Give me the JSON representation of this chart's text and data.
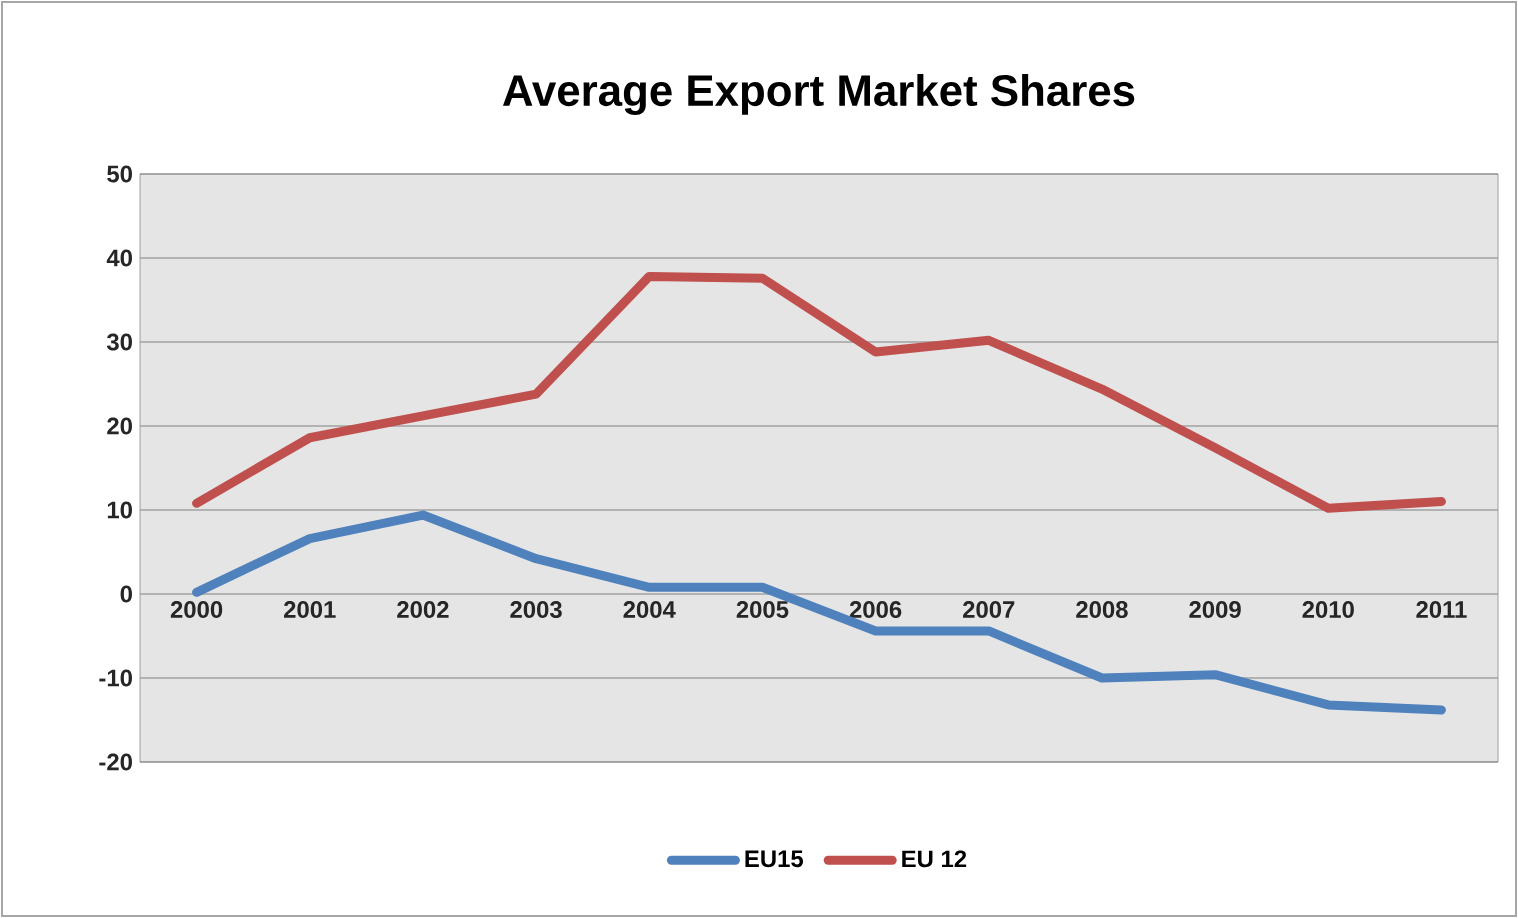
{
  "chart_data": {
    "type": "line",
    "title": "Average Export Market Shares",
    "categories": [
      "2000",
      "2001",
      "2002",
      "2003",
      "2004",
      "2005",
      "2006",
      "2007",
      "2008",
      "2009",
      "2010",
      "2011"
    ],
    "series": [
      {
        "name": "EU15",
        "color": "#4f81bd",
        "values": [
          0.2,
          6.6,
          9.4,
          4.2,
          0.8,
          0.8,
          -4.4,
          -4.4,
          -10,
          -9.6,
          -13.2,
          -13.8
        ]
      },
      {
        "name": "EU 12",
        "color": "#c0504d",
        "values": [
          10.8,
          18.6,
          21.2,
          23.8,
          37.8,
          37.6,
          28.8,
          30.2,
          24.4,
          17.4,
          10.2,
          11
        ]
      }
    ],
    "ylim": [
      -20,
      50
    ],
    "yticks": [
      -20,
      -10,
      0,
      10,
      20,
      30,
      40,
      50
    ],
    "grid": "y",
    "legend": "bottom"
  }
}
